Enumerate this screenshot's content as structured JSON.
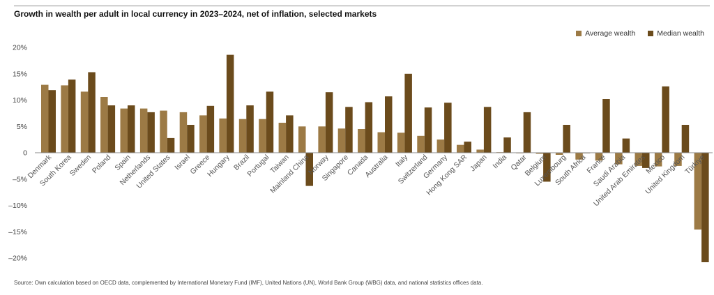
{
  "title": "Growth in wealth per adult in local currency in 2023–2024, net of inflation, selected markets",
  "source": "Source: Own calculation based on OECD data, complemented by International Monetary Fund (IMF), United Nations (UN), World Bank Group (WBG) data, and national statistics offices data.",
  "colors": {
    "average": "#9c7a45",
    "median": "#6b4b1c",
    "axis": "#888888"
  },
  "chart_data": {
    "type": "bar",
    "title": "Growth in wealth per adult in local currency in 2023–2024, net of inflation, selected markets",
    "xlabel": "",
    "ylabel": "",
    "ylim": [
      -20,
      20
    ],
    "yticks": [
      {
        "value": 20,
        "label": "20%"
      },
      {
        "value": 15,
        "label": "15%"
      },
      {
        "value": 10,
        "label": "10%"
      },
      {
        "value": 5,
        "label": "5%"
      },
      {
        "value": 0,
        "label": "0"
      },
      {
        "value": -5,
        "label": "–5%"
      },
      {
        "value": -10,
        "label": "–10%"
      },
      {
        "value": -15,
        "label": "–15%"
      },
      {
        "value": -20,
        "label": "–20%"
      }
    ],
    "legend_position": "top-right",
    "grid": false,
    "categories": [
      "Denmark",
      "South Korea",
      "Sweden",
      "Poland",
      "Spain",
      "Netherlands",
      "United States",
      "Israel",
      "Greece",
      "Hungary",
      "Brazil",
      "Portugal",
      "Taiwan",
      "Mainland China",
      "Norway",
      "Singapore",
      "Canada",
      "Australia",
      "Italy",
      "Switzerland",
      "Germany",
      "Hong Kong SAR",
      "Japan",
      "India",
      "Qatar",
      "Belgium",
      "Luxembourg",
      "South Africa",
      "France",
      "Saudi Arabia",
      "United Arab Emirates",
      "Mexico",
      "United Kingdom",
      "Türkiye"
    ],
    "series": [
      {
        "name": "Average wealth",
        "values": [
          12.9,
          12.8,
          11.6,
          10.6,
          8.4,
          8.4,
          8.0,
          7.7,
          7.1,
          6.5,
          6.4,
          6.4,
          5.7,
          5.0,
          5.0,
          4.6,
          4.5,
          3.9,
          3.8,
          3.2,
          2.5,
          1.5,
          0.6,
          0.1,
          -0.1,
          -0.2,
          -0.4,
          -1.3,
          -1.5,
          -2.2,
          -2.5,
          -2.6,
          -2.5,
          -14.6
        ]
      },
      {
        "name": "Median wealth",
        "values": [
          11.9,
          13.9,
          15.3,
          9.0,
          9.0,
          7.7,
          2.8,
          5.3,
          8.9,
          18.6,
          9.0,
          11.6,
          7.1,
          -6.3,
          11.5,
          8.7,
          9.6,
          10.7,
          15.0,
          8.6,
          9.5,
          2.1,
          8.7,
          2.9,
          7.7,
          -5.5,
          5.3,
          -0.1,
          10.2,
          2.7,
          -2.9,
          12.6,
          5.3,
          -20.8
        ]
      }
    ]
  }
}
